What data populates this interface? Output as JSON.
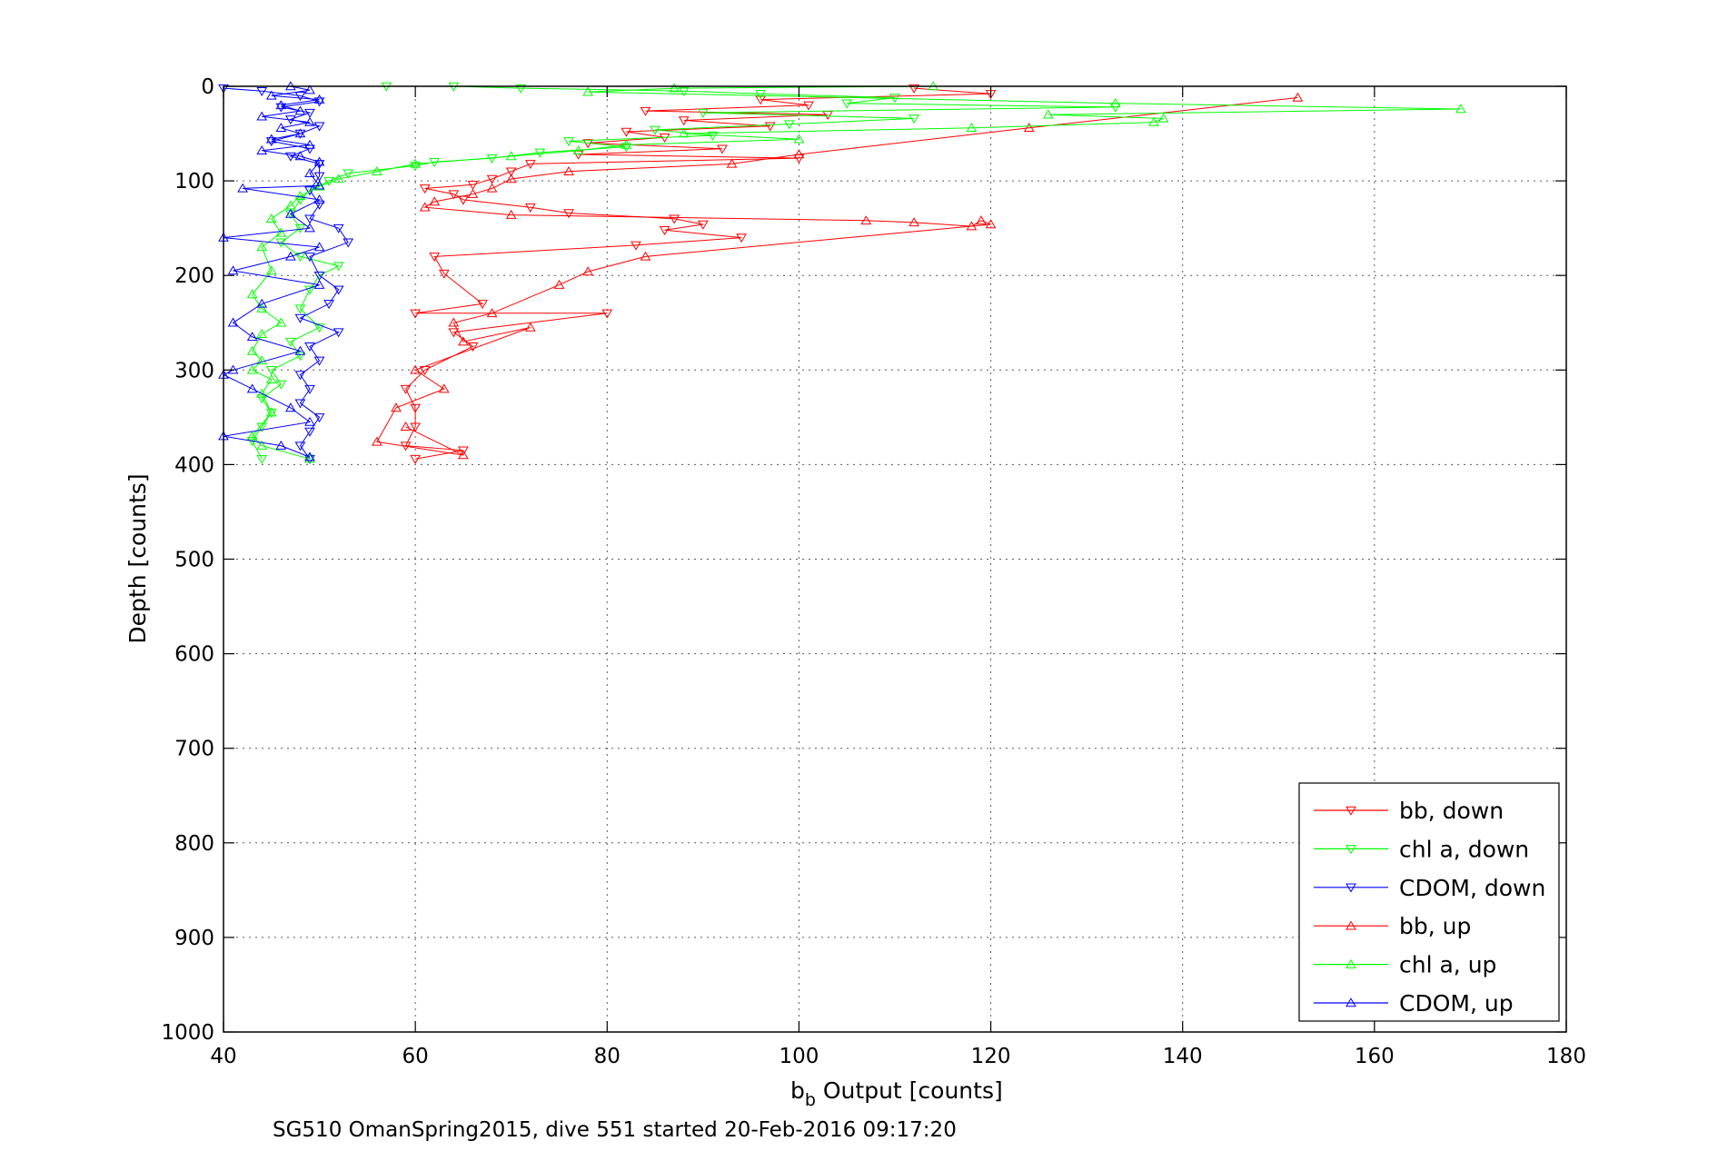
{
  "chart_data": {
    "type": "line",
    "title": "",
    "xlabel_main": "b",
    "xlabel_sub": "b",
    "xlabel_rest": " Output [counts]",
    "ylabel": "Depth [counts]",
    "xlim": [
      40,
      180
    ],
    "ylim": [
      0,
      1000
    ],
    "y_reversed": true,
    "xticks": [
      40,
      60,
      80,
      100,
      120,
      140,
      160,
      180
    ],
    "yticks": [
      0,
      100,
      200,
      300,
      400,
      500,
      600,
      700,
      800,
      900,
      1000
    ],
    "grid": true,
    "legend_position": "bottom-right",
    "footer": "SG510 OmanSpring2015, dive 551 started 20-Feb-2016 09:17:20",
    "series": [
      {
        "name": "bb, down",
        "color": "#ff0000",
        "marker": "triangle-down",
        "points": [
          [
            112,
            2
          ],
          [
            120,
            8
          ],
          [
            96,
            14
          ],
          [
            101,
            20
          ],
          [
            84,
            26
          ],
          [
            103,
            30
          ],
          [
            88,
            36
          ],
          [
            97,
            42
          ],
          [
            82,
            48
          ],
          [
            86,
            54
          ],
          [
            78,
            60
          ],
          [
            92,
            66
          ],
          [
            77,
            72
          ],
          [
            100,
            76
          ],
          [
            72,
            82
          ],
          [
            70,
            90
          ],
          [
            68,
            98
          ],
          [
            66,
            104
          ],
          [
            61,
            108
          ],
          [
            64,
            114
          ],
          [
            65,
            120
          ],
          [
            72,
            128
          ],
          [
            76,
            134
          ],
          [
            87,
            140
          ],
          [
            90,
            146
          ],
          [
            86,
            152
          ],
          [
            94,
            160
          ],
          [
            83,
            168
          ],
          [
            62,
            180
          ],
          [
            63,
            198
          ],
          [
            67,
            230
          ],
          [
            60,
            240
          ],
          [
            80,
            240
          ],
          [
            64,
            260
          ],
          [
            66,
            275
          ],
          [
            61,
            300
          ],
          [
            59,
            320
          ],
          [
            60,
            340
          ],
          [
            60,
            360
          ],
          [
            59,
            380
          ],
          [
            65,
            385
          ],
          [
            60,
            394
          ]
        ]
      },
      {
        "name": "chl a, down",
        "color": "#00ff00",
        "marker": "triangle-down",
        "points": [
          [
            57,
            0
          ],
          [
            64,
            0
          ],
          [
            71,
            2
          ],
          [
            88,
            5
          ],
          [
            96,
            8
          ],
          [
            110,
            12
          ],
          [
            105,
            18
          ],
          [
            133,
            22
          ],
          [
            90,
            28
          ],
          [
            112,
            34
          ],
          [
            99,
            40
          ],
          [
            85,
            46
          ],
          [
            91,
            52
          ],
          [
            76,
            58
          ],
          [
            82,
            64
          ],
          [
            73,
            70
          ],
          [
            68,
            76
          ],
          [
            62,
            80
          ],
          [
            60,
            84
          ],
          [
            53,
            92
          ],
          [
            51,
            100
          ],
          [
            49,
            110
          ],
          [
            48,
            120
          ],
          [
            47,
            135
          ],
          [
            48,
            150
          ],
          [
            46,
            165
          ],
          [
            48,
            180
          ],
          [
            52,
            190
          ],
          [
            50,
            200
          ],
          [
            49,
            215
          ],
          [
            48,
            235
          ],
          [
            50,
            255
          ],
          [
            47,
            270
          ],
          [
            48,
            285
          ],
          [
            45,
            300
          ],
          [
            46,
            315
          ],
          [
            44,
            330
          ],
          [
            45,
            345
          ],
          [
            44,
            360
          ],
          [
            43,
            375
          ],
          [
            44,
            394
          ]
        ]
      },
      {
        "name": "CDOM, down",
        "color": "#0000ff",
        "marker": "triangle-down",
        "points": [
          [
            40,
            2
          ],
          [
            44,
            5
          ],
          [
            48,
            10
          ],
          [
            50,
            16
          ],
          [
            46,
            22
          ],
          [
            49,
            28
          ],
          [
            47,
            35
          ],
          [
            50,
            42
          ],
          [
            48,
            50
          ],
          [
            45,
            58
          ],
          [
            49,
            66
          ],
          [
            47,
            74
          ],
          [
            50,
            82
          ],
          [
            50,
            95
          ],
          [
            49,
            110
          ],
          [
            50,
            125
          ],
          [
            49,
            140
          ],
          [
            52,
            150
          ],
          [
            53,
            165
          ],
          [
            49,
            180
          ],
          [
            50,
            200
          ],
          [
            52,
            215
          ],
          [
            51,
            230
          ],
          [
            48,
            245
          ],
          [
            52,
            260
          ],
          [
            49,
            275
          ],
          [
            50,
            290
          ],
          [
            48,
            305
          ],
          [
            49,
            320
          ],
          [
            48,
            335
          ],
          [
            50,
            350
          ],
          [
            49,
            365
          ],
          [
            48,
            380
          ],
          [
            49,
            394
          ]
        ]
      },
      {
        "name": "bb, up",
        "color": "#ff0000",
        "marker": "triangle-up",
        "points": [
          [
            152,
            12
          ],
          [
            124,
            44
          ],
          [
            100,
            72
          ],
          [
            93,
            82
          ],
          [
            76,
            90
          ],
          [
            70,
            98
          ],
          [
            68,
            108
          ],
          [
            66,
            114
          ],
          [
            62,
            122
          ],
          [
            61,
            128
          ],
          [
            70,
            136
          ],
          [
            107,
            142
          ],
          [
            112,
            144
          ],
          [
            118,
            148
          ],
          [
            119,
            142
          ],
          [
            120,
            146
          ],
          [
            84,
            180
          ],
          [
            78,
            196
          ],
          [
            75,
            210
          ],
          [
            68,
            240
          ],
          [
            64,
            250
          ],
          [
            65,
            270
          ],
          [
            72,
            255
          ],
          [
            60,
            300
          ],
          [
            63,
            320
          ],
          [
            58,
            340
          ],
          [
            56,
            376
          ],
          [
            65,
            390
          ],
          [
            59,
            360
          ]
        ]
      },
      {
        "name": "chl a, up",
        "color": "#00ff00",
        "marker": "triangle-up",
        "points": [
          [
            114,
            0
          ],
          [
            87,
            2
          ],
          [
            78,
            6
          ],
          [
            133,
            18
          ],
          [
            169,
            24
          ],
          [
            126,
            30
          ],
          [
            138,
            34
          ],
          [
            137,
            38
          ],
          [
            118,
            44
          ],
          [
            88,
            50
          ],
          [
            100,
            56
          ],
          [
            82,
            62
          ],
          [
            77,
            68
          ],
          [
            70,
            74
          ],
          [
            60,
            82
          ],
          [
            56,
            90
          ],
          [
            52,
            98
          ],
          [
            50,
            106
          ],
          [
            48,
            116
          ],
          [
            47,
            126
          ],
          [
            45,
            140
          ],
          [
            46,
            155
          ],
          [
            44,
            170
          ],
          [
            45,
            195
          ],
          [
            43,
            220
          ],
          [
            44,
            235
          ],
          [
            46,
            250
          ],
          [
            44,
            262
          ],
          [
            43,
            280
          ],
          [
            44,
            290
          ],
          [
            43,
            300
          ],
          [
            45,
            310
          ],
          [
            44,
            325
          ],
          [
            45,
            345
          ],
          [
            43,
            370
          ],
          [
            44,
            380
          ],
          [
            49,
            394
          ]
        ]
      },
      {
        "name": "CDOM, up",
        "color": "#0000ff",
        "marker": "triangle-up",
        "points": [
          [
            47,
            0
          ],
          [
            49,
            4
          ],
          [
            45,
            10
          ],
          [
            50,
            14
          ],
          [
            46,
            20
          ],
          [
            48,
            26
          ],
          [
            44,
            32
          ],
          [
            49,
            38
          ],
          [
            46,
            44
          ],
          [
            48,
            50
          ],
          [
            45,
            56
          ],
          [
            49,
            62
          ],
          [
            44,
            68
          ],
          [
            48,
            74
          ],
          [
            50,
            80
          ],
          [
            49,
            92
          ],
          [
            50,
            105
          ],
          [
            42,
            108
          ],
          [
            50,
            120
          ],
          [
            47,
            135
          ],
          [
            49,
            150
          ],
          [
            40,
            160
          ],
          [
            50,
            170
          ],
          [
            47,
            180
          ],
          [
            41,
            195
          ],
          [
            50,
            210
          ],
          [
            44,
            230
          ],
          [
            41,
            250
          ],
          [
            43,
            265
          ],
          [
            48,
            280
          ],
          [
            41,
            300
          ],
          [
            40,
            305
          ],
          [
            43,
            320
          ],
          [
            47,
            340
          ],
          [
            49,
            355
          ],
          [
            40,
            370
          ],
          [
            46,
            380
          ],
          [
            49,
            392
          ]
        ]
      }
    ]
  }
}
